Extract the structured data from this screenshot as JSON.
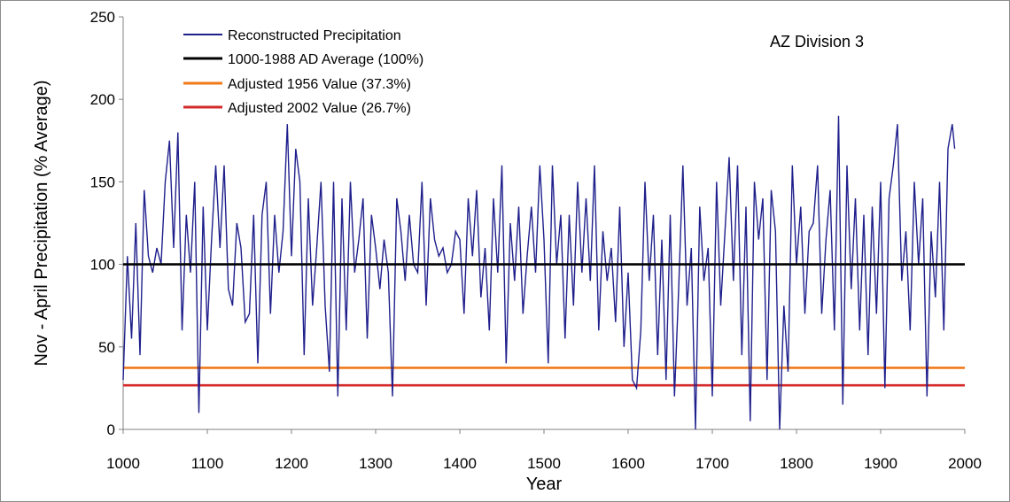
{
  "chart_data": {
    "type": "line",
    "title": "",
    "annotation": "AZ Division 3",
    "xlabel": "Year",
    "ylabel": "Nov - April Precipitation (% Average)",
    "xlim": [
      1000,
      2000
    ],
    "ylim": [
      0,
      250
    ],
    "x_ticks": [
      "1000",
      "1100",
      "1200",
      "1300",
      "1400",
      "1500",
      "1600",
      "1700",
      "1800",
      "1900",
      "2000"
    ],
    "y_ticks": [
      "0",
      "50",
      "100",
      "150",
      "200",
      "250"
    ],
    "grid": false,
    "legend_position": "top-left",
    "series": [
      {
        "name": "Reconstructed Precipitation",
        "color": "#1f1f8c",
        "x_start": 1000,
        "x_end": 1988,
        "x": [
          1000,
          1005,
          1010,
          1015,
          1020,
          1025,
          1030,
          1035,
          1040,
          1045,
          1050,
          1055,
          1060,
          1065,
          1070,
          1075,
          1080,
          1085,
          1090,
          1095,
          1100,
          1105,
          1110,
          1115,
          1120,
          1125,
          1130,
          1135,
          1140,
          1145,
          1150,
          1155,
          1160,
          1165,
          1170,
          1175,
          1180,
          1185,
          1190,
          1195,
          1200,
          1205,
          1210,
          1215,
          1220,
          1225,
          1230,
          1235,
          1240,
          1245,
          1250,
          1255,
          1260,
          1265,
          1270,
          1275,
          1280,
          1285,
          1290,
          1295,
          1300,
          1305,
          1310,
          1315,
          1320,
          1325,
          1330,
          1335,
          1340,
          1345,
          1350,
          1355,
          1360,
          1365,
          1370,
          1375,
          1380,
          1385,
          1390,
          1395,
          1400,
          1405,
          1410,
          1415,
          1420,
          1425,
          1430,
          1435,
          1440,
          1445,
          1450,
          1455,
          1460,
          1465,
          1470,
          1475,
          1480,
          1485,
          1490,
          1495,
          1500,
          1505,
          1510,
          1515,
          1520,
          1525,
          1530,
          1535,
          1540,
          1545,
          1550,
          1555,
          1560,
          1565,
          1570,
          1575,
          1580,
          1585,
          1590,
          1595,
          1600,
          1605,
          1610,
          1615,
          1620,
          1625,
          1630,
          1635,
          1640,
          1645,
          1650,
          1655,
          1660,
          1665,
          1670,
          1675,
          1680,
          1685,
          1690,
          1695,
          1700,
          1705,
          1710,
          1715,
          1720,
          1725,
          1730,
          1735,
          1740,
          1745,
          1750,
          1755,
          1760,
          1765,
          1770,
          1775,
          1780,
          1785,
          1790,
          1795,
          1800,
          1805,
          1810,
          1815,
          1820,
          1825,
          1830,
          1835,
          1840,
          1845,
          1850,
          1855,
          1860,
          1865,
          1870,
          1875,
          1880,
          1885,
          1890,
          1895,
          1900,
          1905,
          1910,
          1915,
          1920,
          1925,
          1930,
          1935,
          1940,
          1945,
          1950,
          1955,
          1960,
          1965,
          1970,
          1975,
          1980,
          1985,
          1988
        ],
        "values": [
          30,
          105,
          55,
          125,
          45,
          145,
          105,
          95,
          110,
          100,
          150,
          175,
          110,
          180,
          60,
          130,
          95,
          150,
          10,
          135,
          60,
          115,
          160,
          110,
          160,
          85,
          75,
          125,
          110,
          65,
          70,
          130,
          40,
          130,
          150,
          70,
          130,
          95,
          120,
          185,
          105,
          170,
          150,
          45,
          140,
          75,
          110,
          150,
          75,
          35,
          150,
          20,
          140,
          60,
          150,
          95,
          115,
          140,
          55,
          130,
          110,
          85,
          115,
          95,
          20,
          140,
          120,
          90,
          130,
          100,
          95,
          150,
          75,
          140,
          115,
          105,
          110,
          95,
          100,
          120,
          115,
          70,
          140,
          105,
          145,
          80,
          110,
          60,
          140,
          95,
          160,
          40,
          125,
          90,
          135,
          70,
          105,
          135,
          95,
          160,
          115,
          40,
          160,
          100,
          130,
          55,
          130,
          75,
          150,
          95,
          140,
          90,
          160,
          60,
          120,
          90,
          110,
          65,
          135,
          50,
          95,
          30,
          25,
          60,
          150,
          90,
          130,
          45,
          115,
          30,
          130,
          20,
          85,
          160,
          75,
          110,
          0,
          135,
          90,
          110,
          20,
          150,
          75,
          120,
          165,
          90,
          160,
          45,
          135,
          5,
          150,
          115,
          140,
          30,
          145,
          120,
          0,
          75,
          35,
          160,
          100,
          135,
          70,
          120,
          125,
          160,
          70,
          115,
          145,
          60,
          190,
          15,
          160,
          85,
          140,
          60,
          130,
          45,
          135,
          70,
          150,
          25,
          140,
          160,
          185,
          90,
          120,
          60,
          150,
          100,
          140,
          20,
          120,
          80,
          150,
          60,
          170,
          185,
          170
        ]
      },
      {
        "name": "1000-1988 AD Average (100%)",
        "color": "#000000",
        "value": 100
      },
      {
        "name": "Adjusted 1956 Value  (37.3%)",
        "color": "#f07a1a",
        "value": 37.3
      },
      {
        "name": "Adjusted 2002 Value  (26.7%)",
        "color": "#d42a2a",
        "value": 26.7
      }
    ]
  }
}
